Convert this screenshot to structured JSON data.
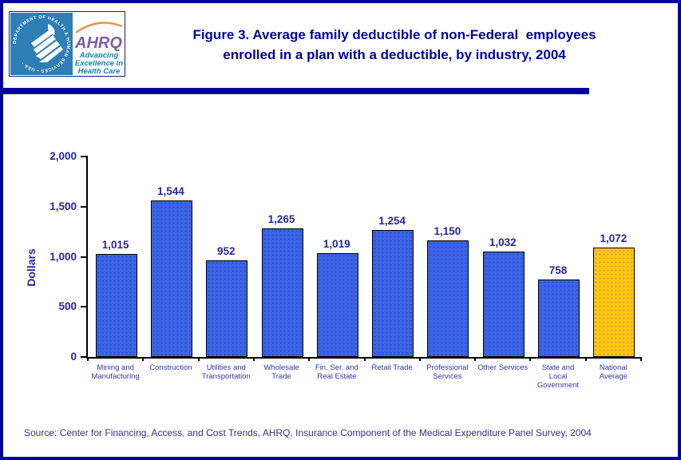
{
  "header": {
    "title_line1": "Figure 3. Average family deductible of non-Federal  employees",
    "title_line2": "enrolled in a plan with a deductible, by industry, 2004",
    "logo": {
      "seal_text": "DEPARTMENT OF HEALTH & HUMAN SERVICES • USA •",
      "acronym": "AHRQ",
      "tagline_line1": "Advancing",
      "tagline_line2": "Excellence in",
      "tagline_line3": "Health Care"
    }
  },
  "chart_data": {
    "type": "bar",
    "title": "Average family deductible of non-Federal employees enrolled in a plan with a deductible, by industry, 2004",
    "xlabel": "",
    "ylabel": "Dollars",
    "ylim": [
      0,
      2000
    ],
    "yticks": [
      0,
      500,
      1000,
      1500,
      2000
    ],
    "ytick_labels": [
      "0",
      "500",
      "1,000",
      "1,500",
      "2,000"
    ],
    "grid": false,
    "legend": null,
    "categories": [
      "Mining and Manufacturing",
      "Construction",
      "Utilities and Transportation",
      "Wholesale Trade",
      "Fin. Ser. and Real Estate",
      "Retail Trade",
      "Professional Services",
      "Other Services",
      "State and Local Government",
      "National Average"
    ],
    "category_lines": [
      [
        "Mining and",
        "Manufacturing"
      ],
      [
        "Construction"
      ],
      [
        "Utilities and",
        "Transportation"
      ],
      [
        "Wholesale",
        "Trade"
      ],
      [
        "Fin. Ser. and",
        "Real Estate"
      ],
      [
        "Retail Trade"
      ],
      [
        "Professional",
        "Services"
      ],
      [
        "Other Services"
      ],
      [
        "State and",
        "Local",
        "Government"
      ],
      [
        "National",
        "Average"
      ]
    ],
    "values": [
      1015,
      1544,
      952,
      1265,
      1019,
      1254,
      1150,
      1032,
      758,
      1072
    ],
    "value_labels": [
      "1,015",
      "1,544",
      "952",
      "1,265",
      "1,019",
      "1,254",
      "1,150",
      "1,032",
      "758",
      "1,072"
    ],
    "bar_colors": [
      "#3B63E6",
      "#3B63E6",
      "#3B63E6",
      "#3B63E6",
      "#3B63E6",
      "#3B63E6",
      "#3B63E6",
      "#3B63E6",
      "#3B63E6",
      "#FFC613"
    ]
  },
  "footer": {
    "source": "Source: Center for Financing, Access, and Cost Trends, AHRQ, Insurance Component of the Medical Expenditure Panel Survey, 2004"
  },
  "colors": {
    "accent_navy": "#0000A0",
    "bar_blue": "#3B63E6",
    "bar_gold": "#FFC613",
    "text_navy": "#26269C",
    "hhs_blue": "#2E7FB5",
    "ahrq_purple": "#7F5CA8",
    "tagline_teal": "#1580B2",
    "swoosh_orange": "#DD9950"
  }
}
